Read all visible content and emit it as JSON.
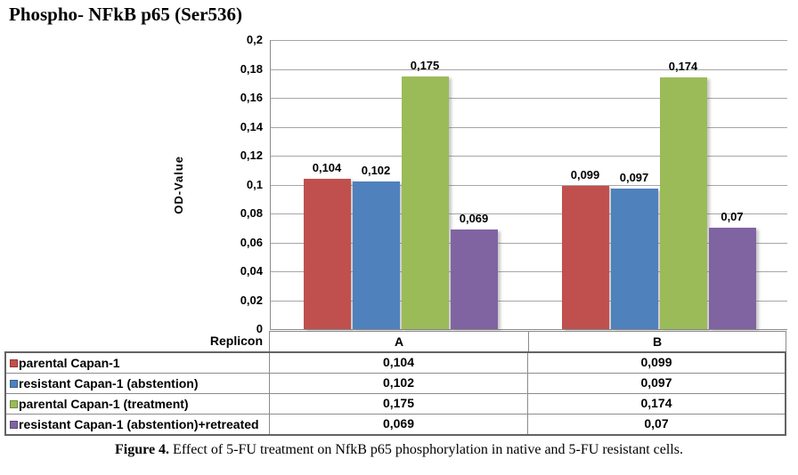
{
  "title": "Phospho- NFkB p65 (Ser536)",
  "caption": {
    "prefix": "Figure 4.",
    "text": " Effect of 5-FU treatment on NfkB p65 phosphorylation in native and 5-FU resistant cells."
  },
  "chart_data": {
    "type": "bar",
    "title": "Phospho- NFkB p65 (Ser536)",
    "xlabel": "Replicon",
    "ylabel": "OD-Value",
    "ylim": [
      0,
      0.2
    ],
    "ytick_step": 0.02,
    "yticks": [
      "0,2",
      "0,18",
      "0,16",
      "0,14",
      "0,12",
      "0,1",
      "0,08",
      "0,06",
      "0,04",
      "0,02",
      "0"
    ],
    "grid": true,
    "decimal_separator": ",",
    "legend_position": "data-table-below",
    "categories": [
      "A",
      "B"
    ],
    "series": [
      {
        "name": "parental Capan-1",
        "color": "#C0504D",
        "swatch_border": "#953735",
        "values": [
          0.104,
          0.099
        ],
        "labels": [
          "0,104",
          "0,099"
        ]
      },
      {
        "name": "resistant Capan-1 (abstention)",
        "color": "#4F81BD",
        "swatch_border": "#38618E",
        "values": [
          0.102,
          0.097
        ],
        "labels": [
          "0,102",
          "0,097"
        ]
      },
      {
        "name": "parental Capan-1 (treatment)",
        "color": "#9BBB59",
        "swatch_border": "#71893F",
        "values": [
          0.175,
          0.174
        ],
        "labels": [
          "0,175",
          "0,174"
        ]
      },
      {
        "name": "resistant Capan-1 (abstention)+retreated",
        "color": "#8064A2",
        "swatch_border": "#5E497B",
        "values": [
          0.069,
          0.07
        ],
        "labels": [
          "0,069",
          "0,07"
        ]
      }
    ]
  }
}
